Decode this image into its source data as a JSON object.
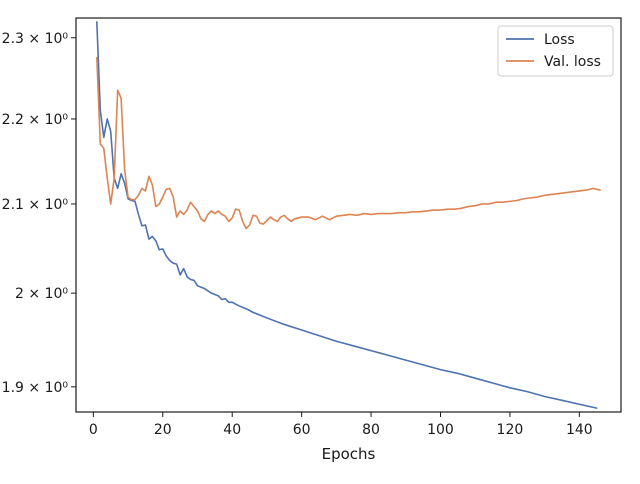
{
  "chart_data": {
    "type": "line",
    "title": "",
    "xlabel": "Epochs",
    "ylabel": "",
    "yscale": "log",
    "xlim": [
      -5,
      152
    ],
    "ylim": [
      1.874,
      2.325
    ],
    "grid": false,
    "legend_position": "top-right",
    "xticks": [
      0,
      20,
      40,
      60,
      80,
      100,
      120,
      140
    ],
    "xtick_labels": [
      "0",
      "20",
      "40",
      "60",
      "80",
      "100",
      "120",
      "140"
    ],
    "yticks": [
      1.9,
      2.0,
      2.1,
      2.2,
      2.3
    ],
    "ytick_labels": [
      "1.9 × 10⁰",
      "2 × 10⁰",
      "2.1 × 10⁰",
      "2.2 × 10⁰",
      "2.3 × 10⁰"
    ],
    "series": [
      {
        "name": "Loss",
        "color": "#4c72b0",
        "points": [
          [
            1,
            2.32
          ],
          [
            2,
            2.21
          ],
          [
            3,
            2.178
          ],
          [
            4,
            2.2
          ],
          [
            5,
            2.185
          ],
          [
            6,
            2.13
          ],
          [
            7,
            2.118
          ],
          [
            8,
            2.135
          ],
          [
            9,
            2.124
          ],
          [
            10,
            2.106
          ],
          [
            11,
            2.104
          ],
          [
            12,
            2.103
          ],
          [
            13,
            2.088
          ],
          [
            14,
            2.075
          ],
          [
            15,
            2.076
          ],
          [
            16,
            2.06
          ],
          [
            17,
            2.063
          ],
          [
            18,
            2.058
          ],
          [
            19,
            2.048
          ],
          [
            20,
            2.049
          ],
          [
            21,
            2.041
          ],
          [
            22,
            2.036
          ],
          [
            23,
            2.033
          ],
          [
            24,
            2.032
          ],
          [
            25,
            2.02
          ],
          [
            26,
            2.027
          ],
          [
            27,
            2.018
          ],
          [
            28,
            2.015
          ],
          [
            29,
            2.014
          ],
          [
            30,
            2.008
          ],
          [
            32,
            2.005
          ],
          [
            34,
            2.0
          ],
          [
            36,
            1.997
          ],
          [
            37,
            1.993
          ],
          [
            38,
            1.994
          ],
          [
            39,
            1.99
          ],
          [
            40,
            1.99
          ],
          [
            42,
            1.986
          ],
          [
            44,
            1.983
          ],
          [
            46,
            1.979
          ],
          [
            48,
            1.976
          ],
          [
            50,
            1.973
          ],
          [
            55,
            1.966
          ],
          [
            60,
            1.96
          ],
          [
            65,
            1.954
          ],
          [
            70,
            1.948
          ],
          [
            75,
            1.943
          ],
          [
            80,
            1.938
          ],
          [
            85,
            1.933
          ],
          [
            90,
            1.928
          ],
          [
            95,
            1.923
          ],
          [
            100,
            1.918
          ],
          [
            105,
            1.914
          ],
          [
            110,
            1.909
          ],
          [
            115,
            1.904
          ],
          [
            120,
            1.899
          ],
          [
            125,
            1.895
          ],
          [
            130,
            1.89
          ],
          [
            135,
            1.886
          ],
          [
            140,
            1.882
          ],
          [
            145,
            1.878
          ]
        ]
      },
      {
        "name": "Val. loss",
        "color": "#dd8452",
        "points": [
          [
            1,
            2.275
          ],
          [
            2,
            2.17
          ],
          [
            3,
            2.165
          ],
          [
            4,
            2.13
          ],
          [
            5,
            2.1
          ],
          [
            6,
            2.13
          ],
          [
            7,
            2.235
          ],
          [
            8,
            2.225
          ],
          [
            9,
            2.14
          ],
          [
            10,
            2.108
          ],
          [
            11,
            2.105
          ],
          [
            12,
            2.105
          ],
          [
            13,
            2.11
          ],
          [
            14,
            2.118
          ],
          [
            15,
            2.115
          ],
          [
            16,
            2.132
          ],
          [
            17,
            2.122
          ],
          [
            18,
            2.097
          ],
          [
            19,
            2.1
          ],
          [
            20,
            2.108
          ],
          [
            21,
            2.117
          ],
          [
            22,
            2.118
          ],
          [
            23,
            2.108
          ],
          [
            24,
            2.085
          ],
          [
            25,
            2.092
          ],
          [
            26,
            2.088
          ],
          [
            27,
            2.093
          ],
          [
            28,
            2.102
          ],
          [
            29,
            2.097
          ],
          [
            30,
            2.092
          ],
          [
            31,
            2.083
          ],
          [
            32,
            2.08
          ],
          [
            33,
            2.088
          ],
          [
            34,
            2.092
          ],
          [
            35,
            2.089
          ],
          [
            36,
            2.092
          ],
          [
            37,
            2.088
          ],
          [
            38,
            2.086
          ],
          [
            39,
            2.08
          ],
          [
            40,
            2.084
          ],
          [
            41,
            2.094
          ],
          [
            42,
            2.093
          ],
          [
            43,
            2.08
          ],
          [
            44,
            2.072
          ],
          [
            45,
            2.076
          ],
          [
            46,
            2.087
          ],
          [
            47,
            2.086
          ],
          [
            48,
            2.078
          ],
          [
            49,
            2.077
          ],
          [
            50,
            2.081
          ],
          [
            51,
            2.085
          ],
          [
            52,
            2.082
          ],
          [
            53,
            2.08
          ],
          [
            54,
            2.085
          ],
          [
            55,
            2.087
          ],
          [
            56,
            2.083
          ],
          [
            57,
            2.08
          ],
          [
            58,
            2.083
          ],
          [
            59,
            2.084
          ],
          [
            60,
            2.085
          ],
          [
            62,
            2.085
          ],
          [
            64,
            2.082
          ],
          [
            66,
            2.086
          ],
          [
            68,
            2.082
          ],
          [
            70,
            2.086
          ],
          [
            72,
            2.087
          ],
          [
            74,
            2.088
          ],
          [
            76,
            2.087
          ],
          [
            78,
            2.089
          ],
          [
            80,
            2.088
          ],
          [
            82,
            2.089
          ],
          [
            84,
            2.089
          ],
          [
            86,
            2.089
          ],
          [
            88,
            2.09
          ],
          [
            90,
            2.09
          ],
          [
            92,
            2.091
          ],
          [
            94,
            2.091
          ],
          [
            96,
            2.092
          ],
          [
            98,
            2.093
          ],
          [
            100,
            2.093
          ],
          [
            102,
            2.094
          ],
          [
            104,
            2.094
          ],
          [
            106,
            2.095
          ],
          [
            108,
            2.097
          ],
          [
            110,
            2.098
          ],
          [
            112,
            2.1
          ],
          [
            114,
            2.1
          ],
          [
            116,
            2.102
          ],
          [
            118,
            2.102
          ],
          [
            120,
            2.103
          ],
          [
            122,
            2.104
          ],
          [
            124,
            2.106
          ],
          [
            126,
            2.107
          ],
          [
            128,
            2.108
          ],
          [
            130,
            2.11
          ],
          [
            132,
            2.111
          ],
          [
            134,
            2.112
          ],
          [
            136,
            2.113
          ],
          [
            138,
            2.114
          ],
          [
            140,
            2.115
          ],
          [
            142,
            2.116
          ],
          [
            144,
            2.118
          ],
          [
            145,
            2.117
          ],
          [
            146,
            2.116
          ]
        ]
      }
    ]
  }
}
